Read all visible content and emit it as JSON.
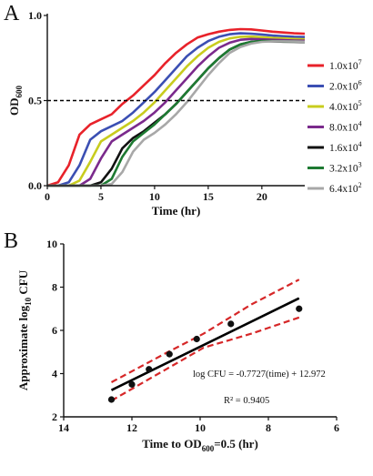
{
  "chart_data": [
    {
      "panel": "A",
      "type": "line",
      "xlabel": "Time (hr)",
      "ylabel": "OD",
      "ylabel_sub": "600",
      "xlim": [
        0,
        24
      ],
      "ylim": [
        0,
        1.0
      ],
      "xticks": [
        "0",
        "5",
        "10",
        "15",
        "20"
      ],
      "yticks": [
        "0.0",
        "0.5",
        "1.0"
      ],
      "reference_line": {
        "y": 0.5,
        "style": "dashed",
        "color": "#000000"
      },
      "legend_position": "right",
      "series": [
        {
          "name": "1.0x10",
          "exp": "7",
          "color": "#e8222a",
          "x": [
            0,
            1,
            2,
            3,
            4,
            5,
            6,
            7,
            8,
            9,
            10,
            11,
            12,
            13,
            14,
            15,
            16,
            17,
            18,
            19,
            20,
            21,
            22,
            23,
            24
          ],
          "y": [
            0.0,
            0.02,
            0.12,
            0.3,
            0.36,
            0.39,
            0.42,
            0.48,
            0.53,
            0.59,
            0.65,
            0.72,
            0.78,
            0.83,
            0.87,
            0.89,
            0.905,
            0.915,
            0.92,
            0.918,
            0.912,
            0.905,
            0.9,
            0.895,
            0.893
          ]
        },
        {
          "name": "2.0x10",
          "exp": "6",
          "color": "#3b4fb3",
          "x": [
            0,
            1,
            2,
            3,
            4,
            5,
            6,
            7,
            8,
            9,
            10,
            11,
            12,
            13,
            14,
            15,
            16,
            17,
            18,
            19,
            20,
            21,
            22,
            23,
            24
          ],
          "y": [
            0.0,
            0.0,
            0.02,
            0.12,
            0.27,
            0.32,
            0.35,
            0.38,
            0.43,
            0.49,
            0.55,
            0.62,
            0.69,
            0.76,
            0.81,
            0.85,
            0.875,
            0.89,
            0.895,
            0.893,
            0.888,
            0.882,
            0.878,
            0.875,
            0.873
          ]
        },
        {
          "name": "4.0x10",
          "exp": "5",
          "color": "#c8cc1e",
          "x": [
            0,
            1,
            2,
            3,
            4,
            5,
            6,
            7,
            8,
            9,
            10,
            11,
            12,
            13,
            14,
            15,
            16,
            17,
            18,
            19,
            20,
            21,
            22,
            23,
            24
          ],
          "y": [
            0.0,
            0.0,
            0.0,
            0.03,
            0.14,
            0.26,
            0.3,
            0.34,
            0.38,
            0.43,
            0.49,
            0.56,
            0.63,
            0.7,
            0.76,
            0.81,
            0.845,
            0.865,
            0.875,
            0.876,
            0.872,
            0.868,
            0.865,
            0.862,
            0.86
          ]
        },
        {
          "name": "8.0x10",
          "exp": "4",
          "color": "#7b2a8c",
          "x": [
            0,
            1,
            2,
            3,
            4,
            5,
            6,
            7,
            8,
            9,
            10,
            11,
            12,
            13,
            14,
            15,
            16,
            17,
            18,
            19,
            20,
            21,
            22,
            23,
            24
          ],
          "y": [
            0.0,
            0.0,
            0.0,
            0.0,
            0.04,
            0.16,
            0.26,
            0.3,
            0.34,
            0.38,
            0.43,
            0.49,
            0.56,
            0.63,
            0.7,
            0.76,
            0.81,
            0.84,
            0.857,
            0.862,
            0.86,
            0.857,
            0.855,
            0.853,
            0.852
          ]
        },
        {
          "name": "1.6x10",
          "exp": "4",
          "color": "#111111",
          "x": [
            0,
            1,
            2,
            3,
            4,
            5,
            6,
            7,
            8,
            9,
            10,
            11,
            12,
            13,
            14,
            15,
            16,
            17,
            18,
            19,
            20,
            21,
            22,
            23,
            24
          ],
          "y": [
            0.0,
            0.0,
            0.0,
            0.0,
            0.0,
            0.02,
            0.1,
            0.22,
            0.28,
            0.32,
            0.37,
            0.42,
            0.48,
            0.55,
            0.62,
            0.69,
            0.75,
            0.8,
            0.83,
            0.845,
            0.85,
            0.848,
            0.846,
            0.845,
            0.844
          ]
        },
        {
          "name": "3.2x10",
          "exp": "3",
          "color": "#1e7a32",
          "x": [
            0,
            1,
            2,
            3,
            4,
            5,
            6,
            7,
            8,
            9,
            10,
            11,
            12,
            13,
            14,
            15,
            16,
            17,
            18,
            19,
            20,
            21,
            22,
            23,
            24
          ],
          "y": [
            0.0,
            0.0,
            0.0,
            0.0,
            0.0,
            0.0,
            0.04,
            0.17,
            0.26,
            0.31,
            0.36,
            0.42,
            0.48,
            0.55,
            0.62,
            0.69,
            0.75,
            0.8,
            0.83,
            0.845,
            0.85,
            0.85,
            0.848,
            0.847,
            0.846
          ]
        },
        {
          "name": "6.4x10",
          "exp": "2",
          "color": "#a8a8a8",
          "x": [
            0,
            1,
            2,
            3,
            4,
            5,
            6,
            7,
            8,
            9,
            10,
            11,
            12,
            13,
            14,
            15,
            16,
            17,
            18,
            19,
            20,
            21,
            22,
            23,
            24
          ],
          "y": [
            0.0,
            0.0,
            0.0,
            0.0,
            0.0,
            0.0,
            0.01,
            0.08,
            0.2,
            0.27,
            0.31,
            0.36,
            0.42,
            0.49,
            0.57,
            0.65,
            0.72,
            0.78,
            0.815,
            0.835,
            0.845,
            0.848,
            0.848,
            0.847,
            0.846
          ]
        }
      ]
    },
    {
      "panel": "B",
      "type": "scatter",
      "xlabel": "Time to OD",
      "xlabel_sub": "600",
      "xlabel_tail": "=0.5 (hr)",
      "ylabel": "Approximate log",
      "ylabel_sub": "10",
      "ylabel_tail": " CFU",
      "xlim": [
        14,
        6
      ],
      "ylim": [
        2,
        10
      ],
      "x_reversed": true,
      "xticks": [
        14,
        12,
        10,
        8,
        6
      ],
      "yticks": [
        2,
        4,
        6,
        8,
        10
      ],
      "points": [
        {
          "x": 12.6,
          "y": 2.8
        },
        {
          "x": 12.0,
          "y": 3.5
        },
        {
          "x": 11.5,
          "y": 4.2
        },
        {
          "x": 10.9,
          "y": 4.9
        },
        {
          "x": 10.1,
          "y": 5.6
        },
        {
          "x": 9.1,
          "y": 6.3
        },
        {
          "x": 7.1,
          "y": 7.0
        }
      ],
      "fit": {
        "slope": -0.7727,
        "intercept": 12.972,
        "x_range": [
          12.6,
          7.1
        ],
        "color": "#000000"
      },
      "confidence_band": {
        "color": "#d62728",
        "upper": [
          [
            12.6,
            3.6
          ],
          [
            11.0,
            4.95
          ],
          [
            9.9,
            5.85
          ],
          [
            8.5,
            7.2
          ],
          [
            7.1,
            8.35
          ]
        ],
        "lower": [
          [
            12.6,
            2.75
          ],
          [
            11.0,
            4.2
          ],
          [
            9.9,
            5.2
          ],
          [
            8.5,
            5.85
          ],
          [
            7.1,
            6.6
          ]
        ]
      },
      "annotations": {
        "equation": "log CFU = -0.7727(time) + 12.972",
        "r_squared": "R² = 0.9405"
      }
    }
  ]
}
